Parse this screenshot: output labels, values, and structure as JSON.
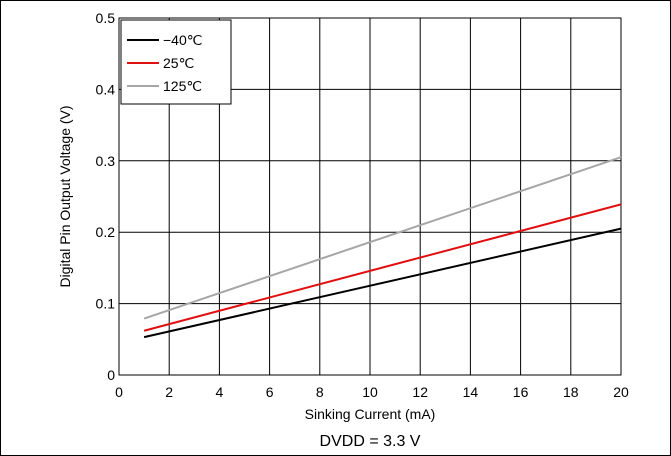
{
  "chart_data": {
    "type": "line",
    "xlabel": "Sinking Current (mA)",
    "ylabel": "Digital Pin Output Voltage (V)",
    "caption": "DVDD = 3.3 V",
    "xlim": [
      0,
      20
    ],
    "ylim": [
      0,
      0.5
    ],
    "x_ticks": [
      "0",
      "2",
      "4",
      "6",
      "8",
      "10",
      "12",
      "14",
      "16",
      "18",
      "20"
    ],
    "y_ticks": [
      "0",
      "0.1",
      "0.2",
      "0.3",
      "0.4",
      "0.5"
    ],
    "grid": true,
    "legend_position": "top-left",
    "series": [
      {
        "name": "−40℃",
        "color": "#000000",
        "x": [
          1,
          20
        ],
        "y": [
          0.053,
          0.205
        ]
      },
      {
        "name": "25℃",
        "color": "#e01010",
        "x": [
          1,
          20
        ],
        "y": [
          0.062,
          0.239
        ]
      },
      {
        "name": "125℃",
        "color": "#a6a6a6",
        "x": [
          1,
          20
        ],
        "y": [
          0.079,
          0.305
        ]
      }
    ]
  }
}
